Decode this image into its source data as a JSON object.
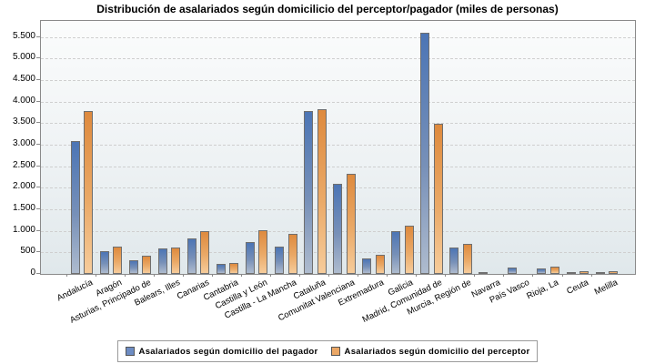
{
  "title": "Distribución de asalariados según domicilicio del perceptor/pagador (miles de personas)",
  "chart_data": {
    "type": "bar",
    "title": "Distribución de asalariados según domicilicio del perceptor/pagador (miles de personas)",
    "categories": [
      "Andalucía",
      "Aragón",
      "Asturias, Principado de",
      "Balears, Illes",
      "Canarias",
      "Cantabria",
      "Castilla y León",
      "Castilla - La Mancha",
      "Cataluña",
      "Comunitat Valenciana",
      "Extremadura",
      "Galicia",
      "Madrid, Comunidad de",
      "Murcia, Región de",
      "Navarra",
      "País Vasco",
      "Rioja, La",
      "Ceuta",
      "Melilla"
    ],
    "series": [
      {
        "name": "Asalariados según domicilio del pagador",
        "color": "#5b7fb8",
        "values": [
          3080,
          530,
          320,
          600,
          830,
          230,
          745,
          625,
          3780,
          2100,
          365,
          995,
          5600,
          620,
          40,
          145,
          130,
          35,
          35
        ]
      },
      {
        "name": "Asalariados según domicilio del perceptor",
        "color": "#e9a163",
        "values": [
          3780,
          635,
          420,
          610,
          1000,
          255,
          1020,
          935,
          3825,
          2315,
          445,
          1110,
          3490,
          705,
          0,
          0,
          170,
          55,
          55
        ]
      }
    ],
    "xlabel": "",
    "ylabel": "",
    "ylim": [
      0,
      5870
    ],
    "yticks": [
      0,
      500,
      1000,
      1500,
      2000,
      2500,
      3000,
      3500,
      4000,
      4500,
      5000,
      5500
    ],
    "ytick_labels": [
      "0",
      "500",
      "1.000",
      "1.500",
      "2.000",
      "2.500",
      "3.000",
      "3.500",
      "4.000",
      "4.500",
      "5.000",
      "5.500"
    ],
    "grid": "horizontal-dashed",
    "legend_position": "bottom"
  },
  "legend": {
    "items": [
      {
        "label": "Asalariados según domicilio del pagador",
        "color": "#6d8cc3"
      },
      {
        "label": "Asalariados según domicilio del perceptor",
        "color": "#eba765"
      }
    ]
  }
}
